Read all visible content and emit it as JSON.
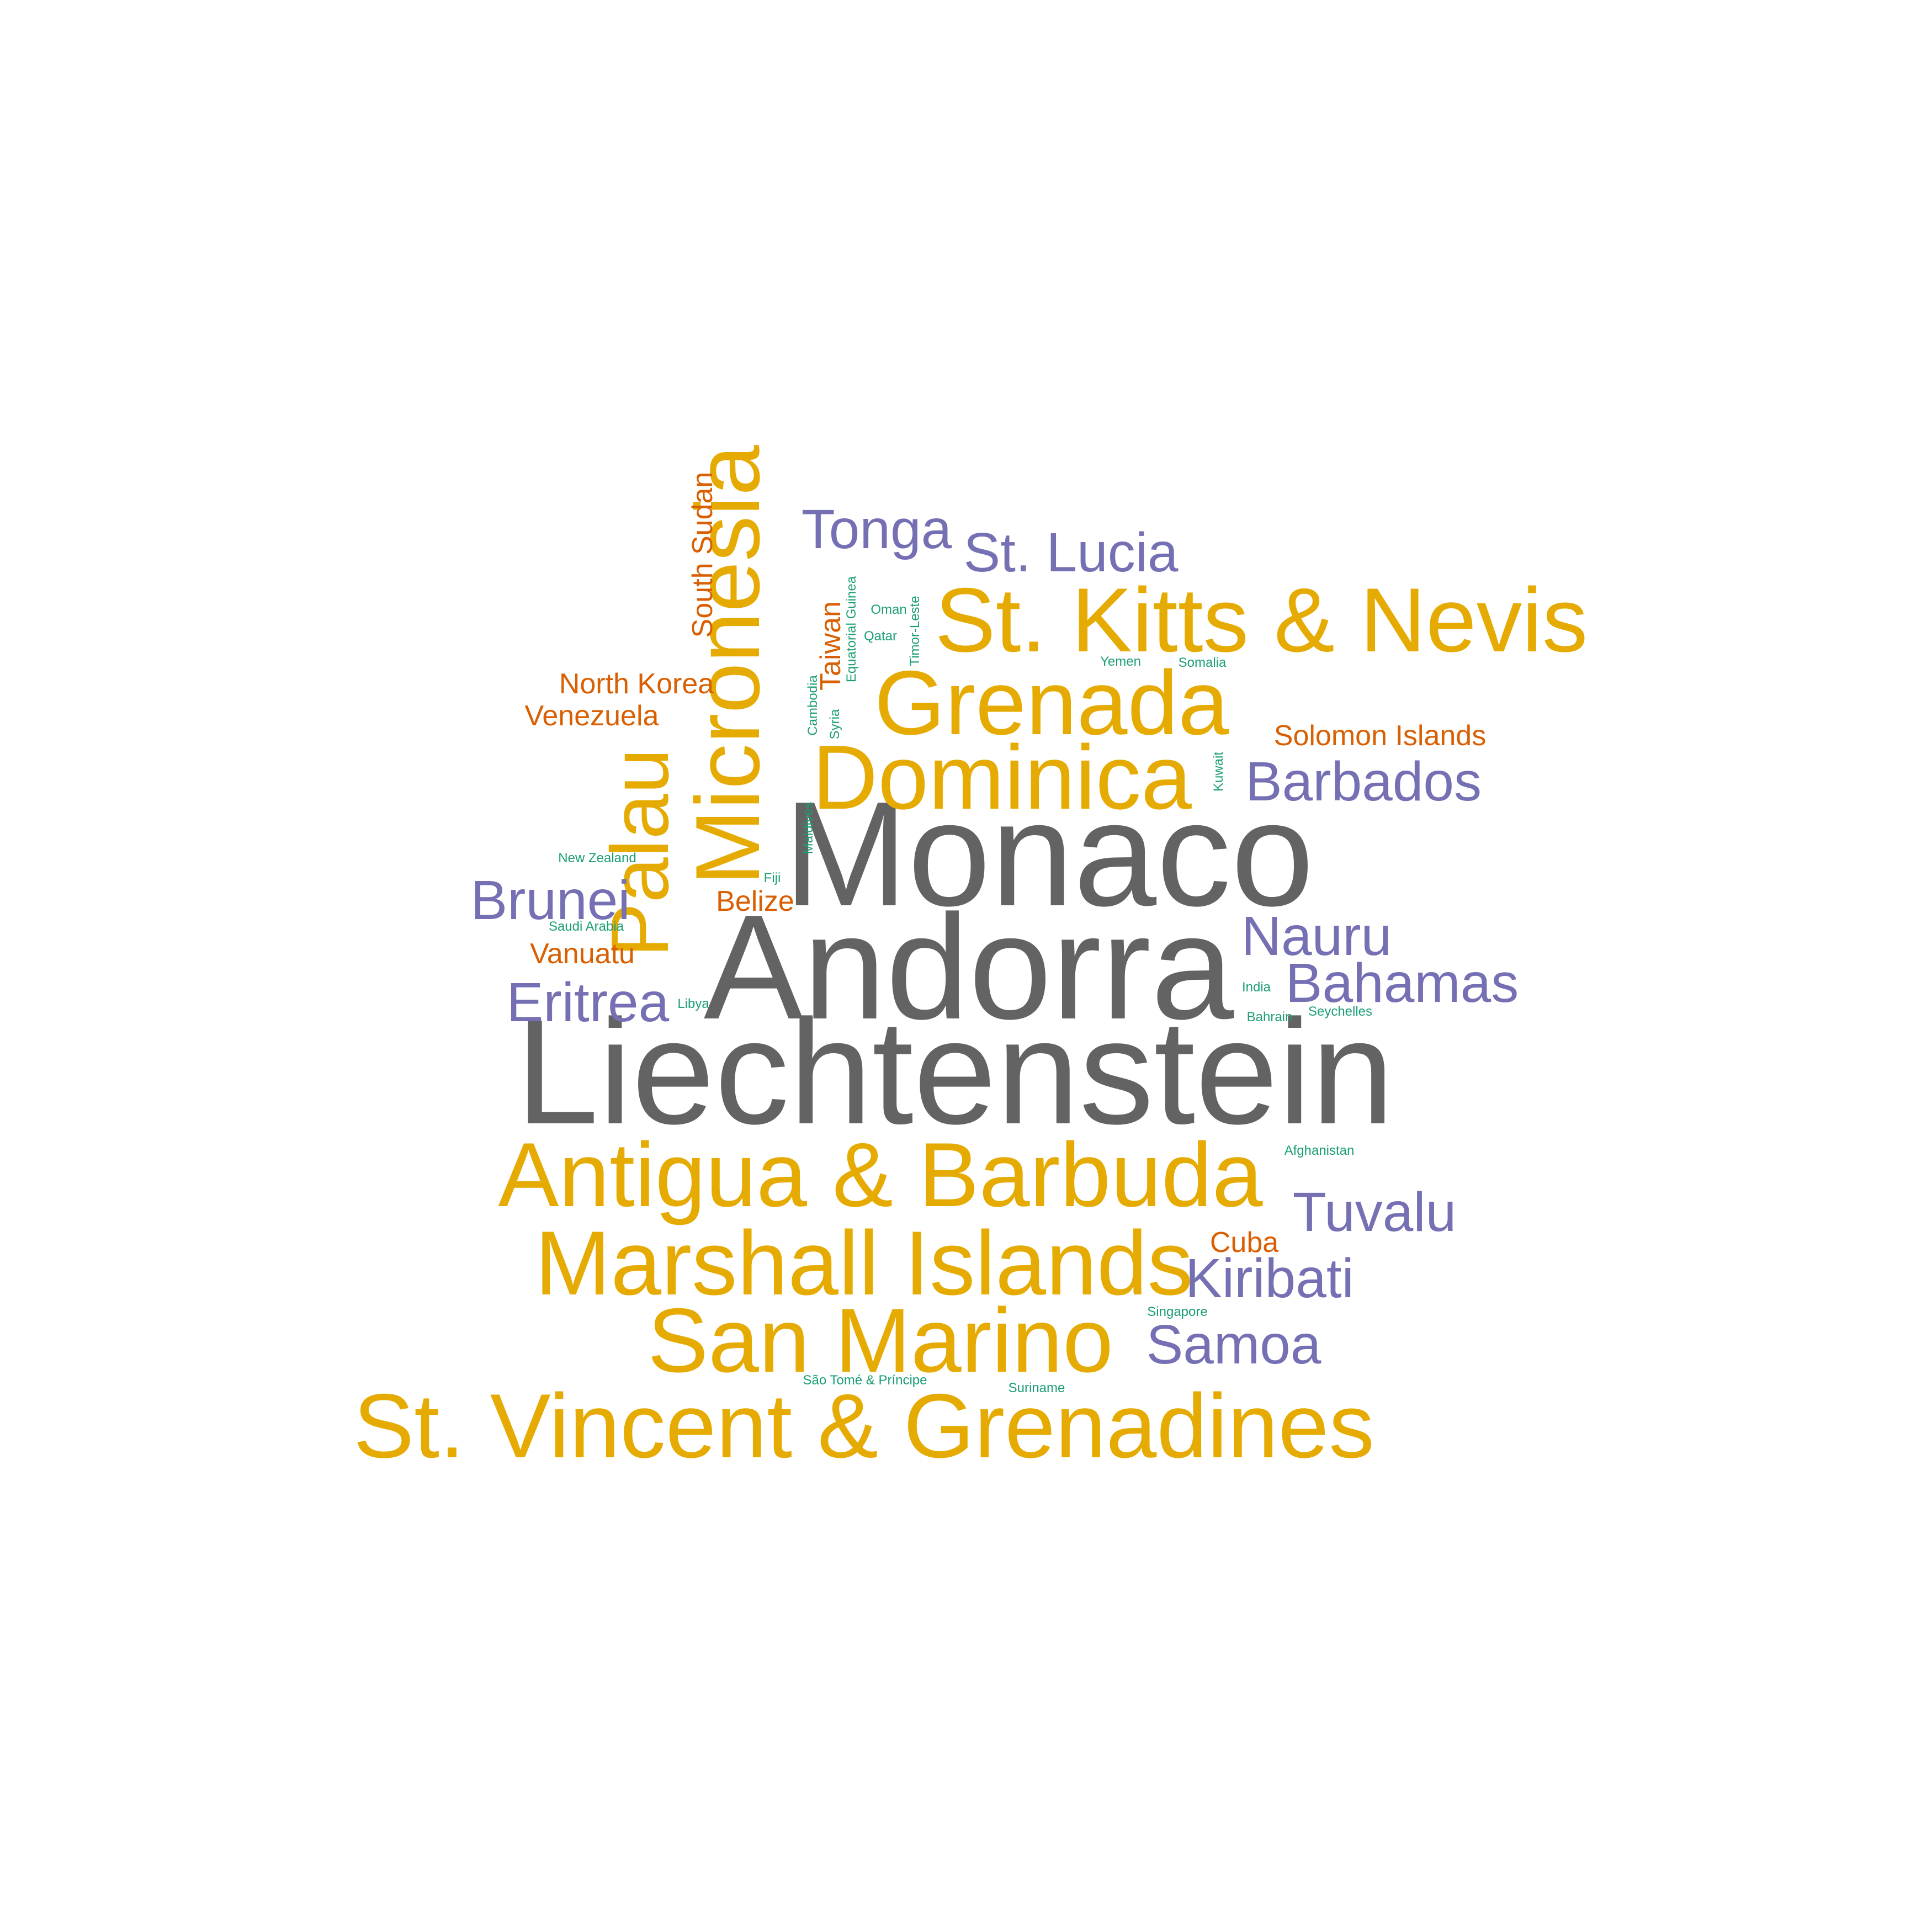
{
  "palette": {
    "gray": "#636363",
    "gold": "#e6ab02",
    "purple": "#7570b3",
    "orange": "#d95f02",
    "teal": "#1b9e77"
  },
  "words": [
    {
      "id": "monaco",
      "text": "Monaco",
      "color": "gray"
    },
    {
      "id": "andorra",
      "text": "Andorra",
      "color": "gray"
    },
    {
      "id": "liechtenstein",
      "text": "Liechtenstein",
      "color": "gray"
    },
    {
      "id": "micronesia",
      "text": "Micronesia",
      "color": "gold"
    },
    {
      "id": "palau",
      "text": "Palau",
      "color": "gold"
    },
    {
      "id": "st-kitts-nevis",
      "text": "St. Kitts & Nevis",
      "color": "gold"
    },
    {
      "id": "grenada",
      "text": "Grenada",
      "color": "gold"
    },
    {
      "id": "dominica",
      "text": "Dominica",
      "color": "gold"
    },
    {
      "id": "antigua-barbuda",
      "text": "Antigua & Barbuda",
      "color": "gold"
    },
    {
      "id": "marshall-islands",
      "text": "Marshall Islands",
      "color": "gold"
    },
    {
      "id": "san-marino",
      "text": "San Marino",
      "color": "gold"
    },
    {
      "id": "st-vincent-grenadines",
      "text": "St. Vincent & Grenadines",
      "color": "gold"
    },
    {
      "id": "tonga",
      "text": "Tonga",
      "color": "purple"
    },
    {
      "id": "st-lucia",
      "text": "St. Lucia",
      "color": "purple"
    },
    {
      "id": "barbados",
      "text": "Barbados",
      "color": "purple"
    },
    {
      "id": "brunei",
      "text": "Brunei",
      "color": "purple"
    },
    {
      "id": "nauru",
      "text": "Nauru",
      "color": "purple"
    },
    {
      "id": "bahamas",
      "text": "Bahamas",
      "color": "purple"
    },
    {
      "id": "eritrea",
      "text": "Eritrea",
      "color": "purple"
    },
    {
      "id": "tuvalu",
      "text": "Tuvalu",
      "color": "purple"
    },
    {
      "id": "kiribati",
      "text": "Kiribati",
      "color": "purple"
    },
    {
      "id": "samoa",
      "text": "Samoa",
      "color": "purple"
    },
    {
      "id": "south-sudan",
      "text": "South Sudan",
      "color": "orange"
    },
    {
      "id": "north-korea",
      "text": "North Korea",
      "color": "orange"
    },
    {
      "id": "venezuela",
      "text": "Venezuela",
      "color": "orange"
    },
    {
      "id": "taiwan",
      "text": "Taiwan",
      "color": "orange"
    },
    {
      "id": "solomon-islands",
      "text": "Solomon Islands",
      "color": "orange"
    },
    {
      "id": "belize",
      "text": "Belize",
      "color": "orange"
    },
    {
      "id": "vanuatu",
      "text": "Vanuatu",
      "color": "orange"
    },
    {
      "id": "cuba",
      "text": "Cuba",
      "color": "orange"
    },
    {
      "id": "equatorial-guinea",
      "text": "Equatorial Guinea",
      "color": "teal"
    },
    {
      "id": "timor-leste",
      "text": "Timor-Leste",
      "color": "teal"
    },
    {
      "id": "oman",
      "text": "Oman",
      "color": "teal"
    },
    {
      "id": "qatar",
      "text": "Qatar",
      "color": "teal"
    },
    {
      "id": "cambodia",
      "text": "Cambodia",
      "color": "teal"
    },
    {
      "id": "syria",
      "text": "Syria",
      "color": "teal"
    },
    {
      "id": "yemen",
      "text": "Yemen",
      "color": "teal"
    },
    {
      "id": "somalia",
      "text": "Somalia",
      "color": "teal"
    },
    {
      "id": "kuwait",
      "text": "Kuwait",
      "color": "teal"
    },
    {
      "id": "maldives",
      "text": "Maldives",
      "color": "teal"
    },
    {
      "id": "new-zealand",
      "text": "New Zealand",
      "color": "teal"
    },
    {
      "id": "fiji",
      "text": "Fiji",
      "color": "teal"
    },
    {
      "id": "saudi-arabia",
      "text": "Saudi Arabia",
      "color": "teal"
    },
    {
      "id": "libya",
      "text": "Libya",
      "color": "teal"
    },
    {
      "id": "india",
      "text": "India",
      "color": "teal"
    },
    {
      "id": "bahrain",
      "text": "Bahrain",
      "color": "teal"
    },
    {
      "id": "seychelles",
      "text": "Seychelles",
      "color": "teal"
    },
    {
      "id": "afghanistan",
      "text": "Afghanistan",
      "color": "teal"
    },
    {
      "id": "singapore",
      "text": "Singapore",
      "color": "teal"
    },
    {
      "id": "sao-tome-principe",
      "text": "São Tomé & Príncipe",
      "color": "teal"
    },
    {
      "id": "suriname",
      "text": "Suriname",
      "color": "teal"
    }
  ]
}
